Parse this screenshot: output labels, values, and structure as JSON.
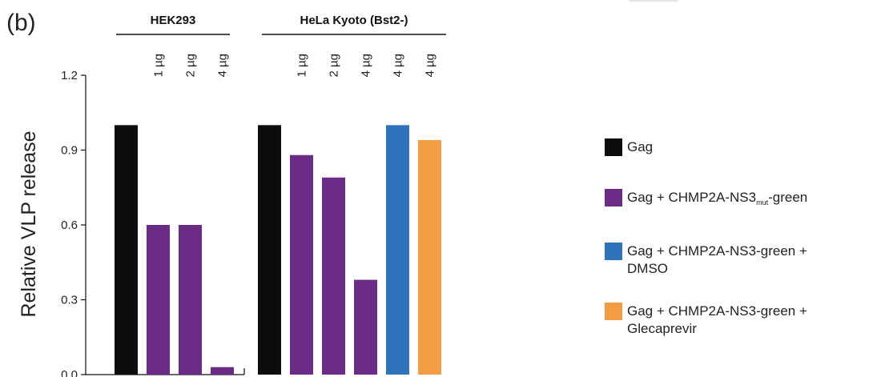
{
  "panel_label": "(b)",
  "colors": {
    "Gag": "#0d0d0d",
    "mut": "#6b2c87",
    "dmso": "#2f74bb",
    "glec": "#f29c43"
  },
  "legend": [
    {
      "key": "Gag",
      "text": "Gag",
      "sub": "",
      "suffix": "",
      "line2": ""
    },
    {
      "key": "mut",
      "text": "Gag + CHMP2A-NS3",
      "sub": "mut",
      "suffix": "-green",
      "line2": ""
    },
    {
      "key": "dmso",
      "text": "Gag + CHMP2A-NS3-green +",
      "sub": "",
      "suffix": "",
      "line2": "DMSO"
    },
    {
      "key": "glec",
      "text": "Gag + CHMP2A-NS3-green +",
      "sub": "",
      "suffix": "",
      "line2": "Glecaprevir"
    }
  ],
  "chart_data": {
    "type": "bar",
    "title": "",
    "xlabel": "",
    "ylabel": "Relative VLP release",
    "ylim": [
      0,
      1.2
    ],
    "yticks": [
      "0.0",
      "0.3",
      "0.6",
      "0.9",
      "1.2"
    ],
    "grid": false,
    "groups": [
      {
        "name": "HEK293",
        "bars": [
          {
            "series": "Gag",
            "dose": "",
            "value": 1.0
          },
          {
            "series": "mut",
            "dose": "1 µg",
            "value": 0.6
          },
          {
            "series": "mut",
            "dose": "2 µg",
            "value": 0.6
          },
          {
            "series": "mut",
            "dose": "4 µg",
            "value": 0.03
          }
        ]
      },
      {
        "name": "HeLa Kyoto (Bst2-)",
        "bars": [
          {
            "series": "Gag",
            "dose": "",
            "value": 1.0
          },
          {
            "series": "mut",
            "dose": "1 µg",
            "value": 0.88
          },
          {
            "series": "mut",
            "dose": "2 µg",
            "value": 0.79
          },
          {
            "series": "mut",
            "dose": "4 µg",
            "value": 0.38
          },
          {
            "series": "dmso",
            "dose": "4 µg",
            "value": 1.0
          },
          {
            "series": "glec",
            "dose": "4 µg",
            "value": 0.94
          }
        ]
      }
    ]
  }
}
